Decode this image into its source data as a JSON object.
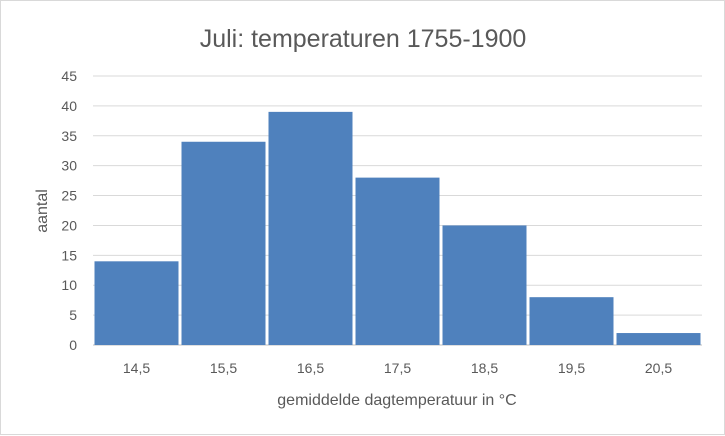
{
  "chart_data": {
    "type": "bar",
    "title": "Juli: temperaturen 1755-1900",
    "xlabel": "gemiddelde dagtemperatuur in °C",
    "ylabel": "aantal",
    "categories": [
      "14,5",
      "15,5",
      "16,5",
      "17,5",
      "18,5",
      "19,5",
      "20,5"
    ],
    "values": [
      14,
      34,
      39,
      28,
      20,
      8,
      2
    ],
    "ylim": [
      0,
      45
    ],
    "yticks": [
      0,
      5,
      10,
      15,
      20,
      25,
      30,
      35,
      40,
      45
    ],
    "grid": true,
    "legend": "none",
    "bar_color": "#4f81bd"
  }
}
